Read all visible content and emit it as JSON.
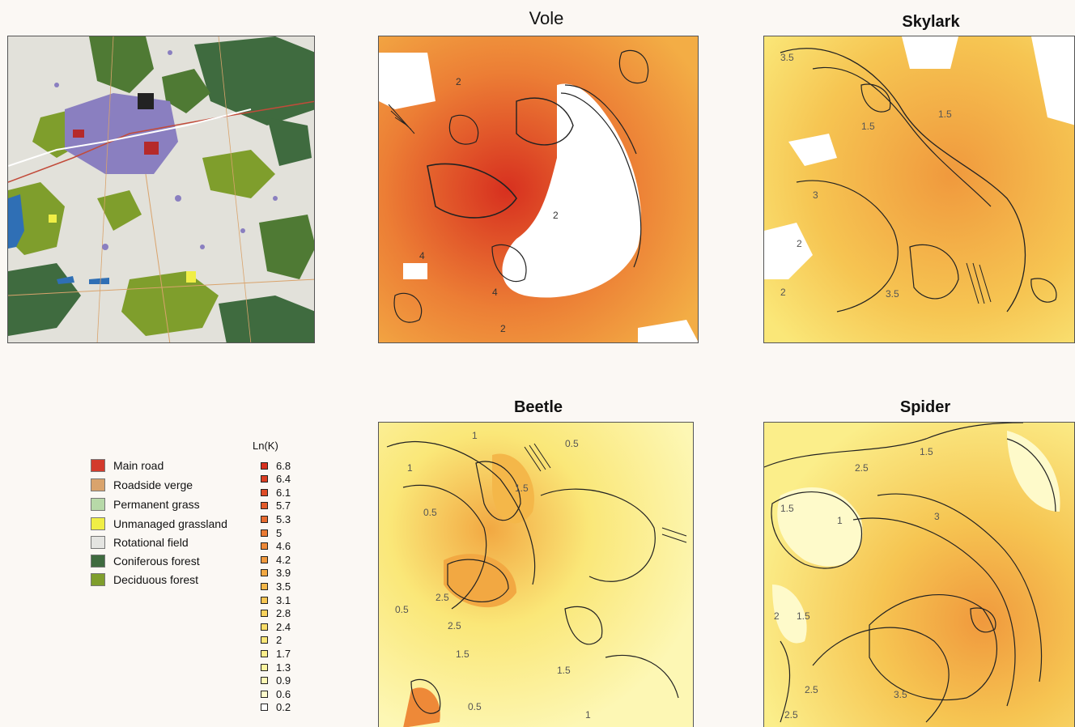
{
  "panels": {
    "vole": {
      "title": "Vole"
    },
    "skylark": {
      "title": "Skylark"
    },
    "beetle": {
      "title": "Beetle"
    },
    "spider": {
      "title": "Spider"
    }
  },
  "landuse_legend": [
    {
      "label": "Main road",
      "color": "#d33a2c"
    },
    {
      "label": "Roadside verge",
      "color": "#d9a36c"
    },
    {
      "label": "Permanent grass",
      "color": "#b7d9a8"
    },
    {
      "label": "Unmanaged grassland",
      "color": "#f0ee46"
    },
    {
      "label": "Rotational field",
      "color": "#e4e4e1"
    },
    {
      "label": "Coniferous forest",
      "color": "#3f6b3f"
    },
    {
      "label": "Deciduous forest",
      "color": "#7f9e2c"
    }
  ],
  "k_legend": {
    "title": "Ln(K)",
    "items": [
      {
        "label": "6.8",
        "color": "#d7301f"
      },
      {
        "label": "6.4",
        "color": "#db3d22"
      },
      {
        "label": "6.1",
        "color": "#df4c26"
      },
      {
        "label": "5.7",
        "color": "#e35b2a"
      },
      {
        "label": "5.3",
        "color": "#e76a2e"
      },
      {
        "label": "5",
        "color": "#ea7a33"
      },
      {
        "label": "4.6",
        "color": "#ee8938"
      },
      {
        "label": "4.2",
        "color": "#f0993d"
      },
      {
        "label": "3.9",
        "color": "#f2a842"
      },
      {
        "label": "3.5",
        "color": "#f4b749"
      },
      {
        "label": "3.1",
        "color": "#f6c552"
      },
      {
        "label": "2.8",
        "color": "#f8d25c"
      },
      {
        "label": "2.4",
        "color": "#f9dd68"
      },
      {
        "label": "2",
        "color": "#fae778"
      },
      {
        "label": "1.7",
        "color": "#fbee8a"
      },
      {
        "label": "1.3",
        "color": "#fcf39e"
      },
      {
        "label": "0.9",
        "color": "#fdf7b4"
      },
      {
        "label": "0.6",
        "color": "#fefaca"
      },
      {
        "label": "0.2",
        "color": "#ffffff"
      }
    ]
  },
  "contour_labels": {
    "vole": [
      "4",
      "2",
      "4",
      "2",
      "2"
    ],
    "skylark": [
      "3.5",
      "1.5",
      "3",
      "1.5",
      "2",
      "3.5",
      "2"
    ],
    "beetle": [
      "1",
      "1.5",
      "0.5",
      "0.5",
      "1",
      "2.5",
      "0.5",
      "2.5",
      "1.5",
      "0.5",
      "1.5",
      "1"
    ],
    "spider": [
      "2.5",
      "1.5",
      "1",
      "3",
      "1.5",
      "1.5",
      "2",
      "2.5",
      "3.5",
      "2.5"
    ]
  }
}
